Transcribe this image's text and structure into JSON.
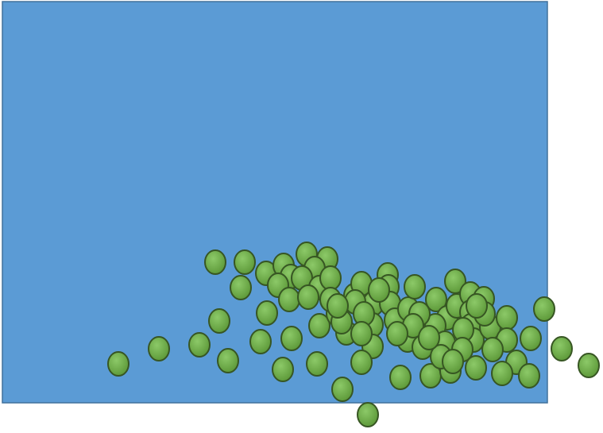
{
  "scene": {
    "background_color": "#ffffff",
    "container": {
      "shape": "rectangle",
      "fill": "#5b9bd5",
      "stroke": "#41719c"
    },
    "particles": {
      "shape": "ellipse",
      "fill": "#70ad47",
      "stroke": "#375623",
      "count": 87
    }
  }
}
